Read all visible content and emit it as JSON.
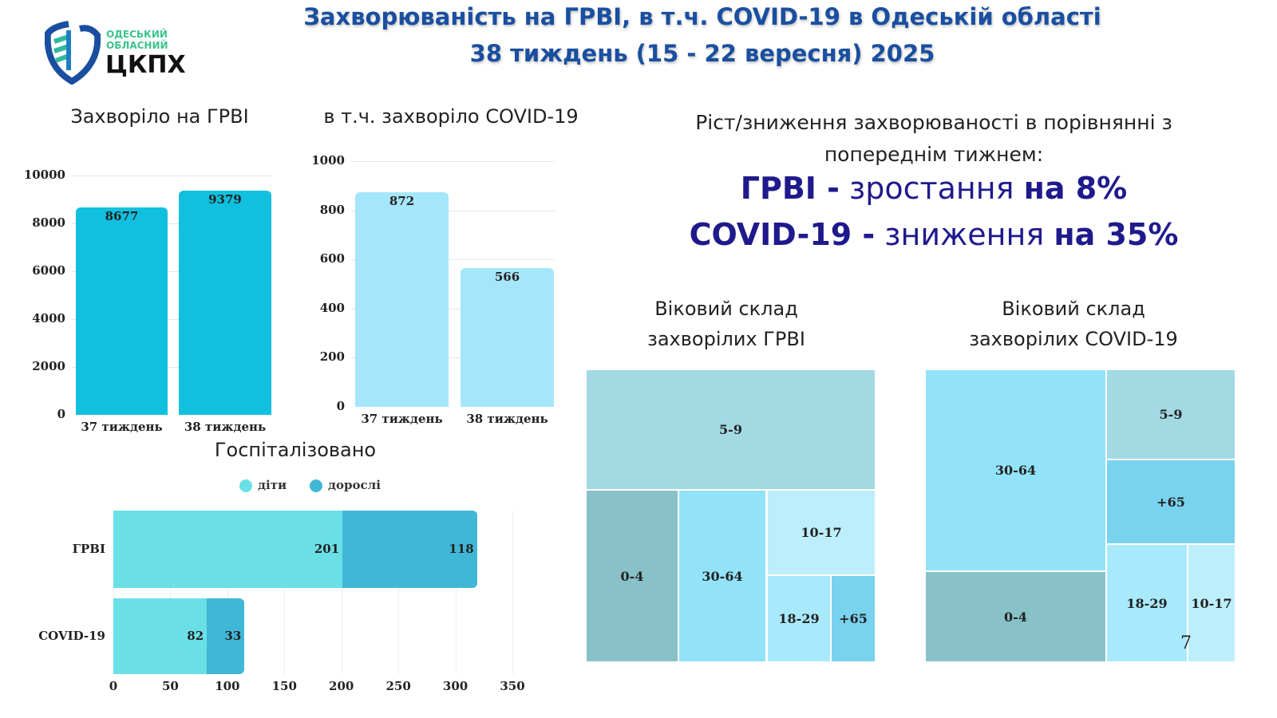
{
  "logo": {
    "line1": "ОДЕСЬКИЙ",
    "line2": "ОБЛАСНИЙ",
    "name": "ЦКПХ"
  },
  "title": {
    "line1": "Захворюваність на ГРВІ, в т.ч. COVID-19 в Одеській області",
    "line2": "38 тиждень (15 - 22 вересня) 2025"
  },
  "growth": {
    "heading1": "Ріст/зниження захворюваності в порівнянні з",
    "heading2": "попереднім тижнем:",
    "grvi_name": "ГРВІ -",
    "grvi_trend": "зростання",
    "grvi_value": "на 8%",
    "covid_name": "COVID-19 -",
    "covid_trend": "зниження",
    "covid_value": "на 35%"
  },
  "colors": {
    "grvi_bar": "#10c0de",
    "covid_bar": "#a6e6fa",
    "children": "#6ae0e6",
    "adults": "#41b7d6"
  },
  "chart_data": [
    {
      "type": "bar",
      "title": "Захворіло на ГРВІ",
      "categories": [
        "37 тиждень",
        "38 тиждень"
      ],
      "values": [
        8677,
        9379
      ],
      "ylim": [
        0,
        10000
      ],
      "yticks": [
        "0",
        "2000",
        "4000",
        "6000",
        "8000",
        "10000"
      ]
    },
    {
      "type": "bar",
      "title": "в т.ч. захворіло COVID-19",
      "categories": [
        "37 тиждень",
        "38 тиждень"
      ],
      "values": [
        872,
        566
      ],
      "ylim": [
        0,
        1000
      ],
      "yticks": [
        "0",
        "200",
        "400",
        "600",
        "800",
        "1000"
      ]
    },
    {
      "type": "bar",
      "orientation": "horizontal",
      "stacked": true,
      "title": "Госпіталізовано",
      "categories": [
        "ГРВІ",
        "COVID-19"
      ],
      "series": [
        {
          "name": "діти",
          "values": [
            201,
            82
          ]
        },
        {
          "name": "дорослі",
          "values": [
            118,
            33
          ]
        }
      ],
      "xlim": [
        0,
        350
      ],
      "xticks": [
        "0",
        "50",
        "100",
        "150",
        "200",
        "250",
        "300",
        "350"
      ],
      "legend": "top"
    },
    {
      "type": "treemap",
      "title1": "Віковий склад",
      "title2": "захворілих ГРВІ",
      "labels": [
        "5-9",
        "0-4",
        "30-64",
        "10-17",
        "18-29",
        "+65"
      ]
    },
    {
      "type": "treemap",
      "title1": "Віковий склад",
      "title2": "захворілих COVID-19",
      "labels": [
        "30-64",
        "0-4",
        "5-9",
        "+65",
        "18-29",
        "10-17"
      ],
      "annotation": "7"
    }
  ]
}
